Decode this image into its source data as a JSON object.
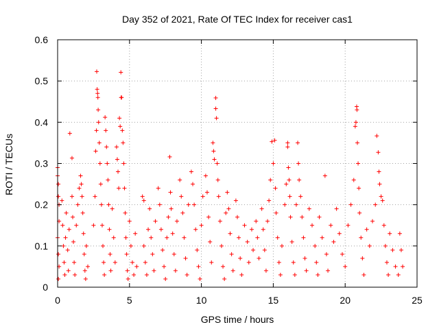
{
  "chart_data": {
    "type": "scatter",
    "title": "Day 352 of 2021, Rate Of TEC Index for receiver cas1",
    "xlabel": "GPS time / hours",
    "ylabel": "ROTI / TECUs",
    "xlim": [
      0,
      25
    ],
    "ylim": [
      0,
      0.6
    ],
    "x_ticks": [
      0,
      5,
      10,
      15,
      20,
      25
    ],
    "y_ticks": [
      0,
      0.1,
      0.2,
      0.3,
      0.4,
      0.5,
      0.6
    ],
    "x_tick_labels": [
      "0",
      "5",
      "10",
      "15",
      "20",
      "25"
    ],
    "y_tick_labels": [
      "0",
      "0.1",
      "0.2",
      "0.3",
      "0.4",
      "0.5",
      "0.6"
    ],
    "grid": true,
    "marker": "+",
    "color": "#ff0000",
    "series": [
      {
        "points": [
          [
            0.0,
            0.29
          ],
          [
            0.0,
            0.27
          ],
          [
            0.05,
            0.25
          ],
          [
            0.05,
            0.22
          ],
          [
            0.1,
            0.2
          ],
          [
            0.1,
            0.16
          ],
          [
            0.0,
            0.12
          ],
          [
            0.05,
            0.08
          ],
          [
            0.1,
            0.05
          ],
          [
            0.05,
            0.02
          ],
          [
            0.3,
            0.21
          ],
          [
            0.35,
            0.15
          ],
          [
            0.4,
            0.1
          ],
          [
            0.45,
            0.06
          ],
          [
            0.5,
            0.03
          ],
          [
            0.55,
            0.12
          ],
          [
            0.6,
            0.18
          ],
          [
            0.7,
            0.09
          ],
          [
            0.75,
            0.04
          ],
          [
            0.8,
            0.14
          ],
          [
            0.85,
            0.373
          ],
          [
            1.0,
            0.313
          ],
          [
            1.0,
            0.22
          ],
          [
            1.05,
            0.17
          ],
          [
            1.1,
            0.11
          ],
          [
            1.15,
            0.06
          ],
          [
            1.2,
            0.03
          ],
          [
            1.3,
            0.15
          ],
          [
            1.4,
            0.2
          ],
          [
            1.5,
            0.24
          ],
          [
            1.6,
            0.27
          ],
          [
            1.65,
            0.25
          ],
          [
            1.7,
            0.22
          ],
          [
            1.75,
            0.18
          ],
          [
            1.8,
            0.13
          ],
          [
            1.85,
            0.08
          ],
          [
            1.9,
            0.04
          ],
          [
            1.95,
            0.02
          ],
          [
            2.0,
            0.1
          ],
          [
            2.1,
            0.05
          ],
          [
            2.5,
            0.15
          ],
          [
            2.6,
            0.22
          ],
          [
            2.65,
            0.33
          ],
          [
            2.7,
            0.38
          ],
          [
            2.72,
            0.523
          ],
          [
            2.75,
            0.48
          ],
          [
            2.78,
            0.47
          ],
          [
            2.8,
            0.46
          ],
          [
            2.82,
            0.43
          ],
          [
            2.85,
            0.4
          ],
          [
            2.9,
            0.35
          ],
          [
            2.95,
            0.3
          ],
          [
            3.0,
            0.25
          ],
          [
            3.05,
            0.2
          ],
          [
            3.1,
            0.15
          ],
          [
            3.15,
            0.1
          ],
          [
            3.2,
            0.06
          ],
          [
            3.25,
            0.03
          ],
          [
            3.3,
            0.412
          ],
          [
            3.35,
            0.38
          ],
          [
            3.4,
            0.34
          ],
          [
            3.45,
            0.3
          ],
          [
            3.5,
            0.26
          ],
          [
            3.55,
            0.2
          ],
          [
            3.6,
            0.14
          ],
          [
            3.65,
            0.08
          ],
          [
            3.7,
            0.04
          ],
          [
            3.8,
            0.19
          ],
          [
            3.9,
            0.12
          ],
          [
            4.0,
            0.06
          ],
          [
            4.1,
            0.34
          ],
          [
            4.15,
            0.31
          ],
          [
            4.2,
            0.28
          ],
          [
            4.25,
            0.24
          ],
          [
            4.3,
            0.41
          ],
          [
            4.35,
            0.39
          ],
          [
            4.4,
            0.521
          ],
          [
            4.42,
            0.46
          ],
          [
            4.45,
            0.46
          ],
          [
            4.5,
            0.38
          ],
          [
            4.55,
            0.35
          ],
          [
            4.6,
            0.3
          ],
          [
            4.65,
            0.24
          ],
          [
            4.7,
            0.18
          ],
          [
            4.75,
            0.12
          ],
          [
            4.8,
            0.08
          ],
          [
            4.85,
            0.04
          ],
          [
            4.9,
            0.02
          ],
          [
            5.0,
            0.16
          ],
          [
            5.1,
            0.1
          ],
          [
            5.2,
            0.06
          ],
          [
            5.3,
            0.03
          ],
          [
            5.4,
            0.13
          ],
          [
            5.5,
            0.05
          ],
          [
            5.9,
            0.22
          ],
          [
            6.0,
            0.21
          ],
          [
            6.0,
            0.1
          ],
          [
            6.1,
            0.06
          ],
          [
            6.2,
            0.03
          ],
          [
            6.3,
            0.14
          ],
          [
            6.4,
            0.19
          ],
          [
            6.5,
            0.12
          ],
          [
            6.6,
            0.08
          ],
          [
            6.7,
            0.04
          ],
          [
            6.8,
            0.16
          ],
          [
            7.0,
            0.24
          ],
          [
            7.1,
            0.2
          ],
          [
            7.2,
            0.14
          ],
          [
            7.3,
            0.09
          ],
          [
            7.4,
            0.05
          ],
          [
            7.5,
            0.02
          ],
          [
            7.6,
            0.12
          ],
          [
            7.7,
            0.17
          ],
          [
            7.8,
            0.316
          ],
          [
            7.85,
            0.23
          ],
          [
            7.9,
            0.19
          ],
          [
            8.0,
            0.13
          ],
          [
            8.1,
            0.08
          ],
          [
            8.2,
            0.04
          ],
          [
            8.3,
            0.16
          ],
          [
            8.5,
            0.26
          ],
          [
            8.6,
            0.22
          ],
          [
            8.7,
            0.18
          ],
          [
            8.8,
            0.12
          ],
          [
            8.9,
            0.07
          ],
          [
            9.0,
            0.03
          ],
          [
            9.1,
            0.2
          ],
          [
            9.3,
            0.28
          ],
          [
            9.4,
            0.25
          ],
          [
            9.5,
            0.2
          ],
          [
            9.6,
            0.14
          ],
          [
            9.7,
            0.09
          ],
          [
            9.8,
            0.05
          ],
          [
            9.9,
            0.02
          ],
          [
            10.0,
            0.15
          ],
          [
            10.1,
            0.22
          ],
          [
            10.3,
            0.27
          ],
          [
            10.4,
            0.23
          ],
          [
            10.5,
            0.17
          ],
          [
            10.6,
            0.11
          ],
          [
            10.7,
            0.06
          ],
          [
            10.8,
            0.35
          ],
          [
            10.85,
            0.33
          ],
          [
            10.9,
            0.31
          ],
          [
            11.0,
            0.459
          ],
          [
            11.0,
            0.433
          ],
          [
            11.05,
            0.41
          ],
          [
            11.1,
            0.3
          ],
          [
            11.15,
            0.26
          ],
          [
            11.2,
            0.22
          ],
          [
            11.3,
            0.16
          ],
          [
            11.4,
            0.1
          ],
          [
            11.5,
            0.05
          ],
          [
            11.6,
            0.02
          ],
          [
            11.7,
            0.18
          ],
          [
            11.8,
            0.23
          ],
          [
            11.9,
            0.19
          ],
          [
            12.0,
            0.13
          ],
          [
            12.1,
            0.08
          ],
          [
            12.2,
            0.04
          ],
          [
            12.4,
            0.21
          ],
          [
            12.5,
            0.17
          ],
          [
            12.6,
            0.12
          ],
          [
            12.7,
            0.07
          ],
          [
            12.8,
            0.03
          ],
          [
            13.0,
            0.15
          ],
          [
            13.2,
            0.11
          ],
          [
            13.3,
            0.06
          ],
          [
            13.5,
            0.14
          ],
          [
            13.6,
            0.09
          ],
          [
            13.8,
            0.16
          ],
          [
            13.9,
            0.12
          ],
          [
            14.0,
            0.07
          ],
          [
            14.2,
            0.19
          ],
          [
            14.3,
            0.14
          ],
          [
            14.4,
            0.09
          ],
          [
            14.5,
            0.04
          ],
          [
            14.6,
            0.16
          ],
          [
            14.7,
            0.21
          ],
          [
            14.8,
            0.26
          ],
          [
            14.9,
            0.353
          ],
          [
            15.0,
            0.3
          ],
          [
            15.1,
            0.356
          ],
          [
            15.15,
            0.24
          ],
          [
            15.2,
            0.18
          ],
          [
            15.3,
            0.12
          ],
          [
            15.4,
            0.06
          ],
          [
            15.5,
            0.03
          ],
          [
            15.6,
            0.1
          ],
          [
            15.8,
            0.2
          ],
          [
            15.9,
            0.25
          ],
          [
            16.0,
            0.35
          ],
          [
            16.0,
            0.34
          ],
          [
            16.05,
            0.29
          ],
          [
            16.1,
            0.26
          ],
          [
            16.15,
            0.22
          ],
          [
            16.2,
            0.17
          ],
          [
            16.3,
            0.11
          ],
          [
            16.4,
            0.06
          ],
          [
            16.5,
            0.03
          ],
          [
            16.6,
            0.2
          ],
          [
            16.7,
            0.35
          ],
          [
            16.75,
            0.3
          ],
          [
            16.8,
            0.26
          ],
          [
            16.9,
            0.22
          ],
          [
            17.0,
            0.17
          ],
          [
            17.1,
            0.12
          ],
          [
            17.2,
            0.07
          ],
          [
            17.3,
            0.04
          ],
          [
            17.5,
            0.19
          ],
          [
            17.7,
            0.15
          ],
          [
            17.9,
            0.1
          ],
          [
            18.0,
            0.06
          ],
          [
            18.1,
            0.03
          ],
          [
            18.2,
            0.17
          ],
          [
            18.4,
            0.12
          ],
          [
            18.6,
            0.27
          ],
          [
            18.7,
            0.08
          ],
          [
            18.8,
            0.04
          ],
          [
            19.0,
            0.15
          ],
          [
            19.2,
            0.11
          ],
          [
            19.4,
            0.19
          ],
          [
            19.6,
            0.13
          ],
          [
            19.8,
            0.08
          ],
          [
            20.0,
            0.05
          ],
          [
            20.2,
            0.15
          ],
          [
            20.4,
            0.2
          ],
          [
            20.6,
            0.26
          ],
          [
            20.7,
            0.39
          ],
          [
            20.75,
            0.4
          ],
          [
            20.8,
            0.438
          ],
          [
            20.82,
            0.43
          ],
          [
            20.85,
            0.35
          ],
          [
            20.9,
            0.3
          ],
          [
            20.95,
            0.24
          ],
          [
            21.0,
            0.18
          ],
          [
            21.1,
            0.12
          ],
          [
            21.2,
            0.07
          ],
          [
            21.3,
            0.03
          ],
          [
            21.5,
            0.14
          ],
          [
            21.7,
            0.1
          ],
          [
            21.9,
            0.16
          ],
          [
            22.1,
            0.2
          ],
          [
            22.2,
            0.367
          ],
          [
            22.3,
            0.327
          ],
          [
            22.35,
            0.28
          ],
          [
            22.4,
            0.25
          ],
          [
            22.5,
            0.22
          ],
          [
            22.6,
            0.21
          ],
          [
            22.7,
            0.15
          ],
          [
            22.8,
            0.1
          ],
          [
            22.9,
            0.06
          ],
          [
            23.0,
            0.03
          ],
          [
            23.1,
            0.13
          ],
          [
            23.3,
            0.09
          ],
          [
            23.5,
            0.05
          ],
          [
            23.7,
            0.03
          ],
          [
            23.8,
            0.13
          ],
          [
            23.9,
            0.09
          ],
          [
            24.0,
            0.05
          ]
        ]
      }
    ]
  }
}
